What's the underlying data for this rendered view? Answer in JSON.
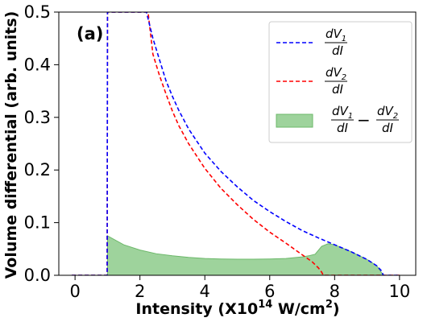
{
  "chart_data": {
    "type": "line",
    "panel_label": "(a)",
    "xlabel_main": "Intensity (X10",
    "xlabel_exp": "14",
    "xlabel_tail": " W/cm",
    "xlabel_sq": "2",
    "xlabel_end": ")",
    "ylabel": "Volume differential (arb. units)",
    "xlim": [
      -0.5,
      10.5
    ],
    "ylim": [
      0,
      0.5
    ],
    "xticks": [
      0,
      2,
      4,
      6,
      8,
      10
    ],
    "yticks": [
      0.0,
      0.1,
      0.2,
      0.3,
      0.4,
      0.5
    ],
    "xtick_labels": [
      "0",
      "2",
      "4",
      "6",
      "8",
      "10"
    ],
    "ytick_labels": [
      "0.0",
      "0.1",
      "0.2",
      "0.3",
      "0.4",
      "0.5"
    ],
    "grid": false,
    "legend_position": "upper-right",
    "colors": {
      "dv1": "#0000ff",
      "dv2": "#ff0000",
      "diff_fill": "#9ed39c",
      "diff_edge": "#6cb86a"
    },
    "series": [
      {
        "key": "dv1",
        "style": "dashed",
        "x": [
          -0.1,
          0.99,
          1.0,
          1.01,
          2.2,
          2.4,
          2.6,
          2.8,
          3.0,
          3.2,
          3.5,
          4.0,
          4.5,
          5.0,
          5.5,
          6.0,
          6.5,
          7.0,
          7.5,
          8.0,
          8.5,
          9.0,
          9.3,
          9.45,
          9.5,
          10.0
        ],
        "y": [
          0.0,
          0.0,
          0.5,
          0.5,
          0.5,
          0.45,
          0.41,
          0.37,
          0.34,
          0.313,
          0.278,
          0.232,
          0.197,
          0.168,
          0.142,
          0.121,
          0.102,
          0.085,
          0.071,
          0.058,
          0.045,
          0.03,
          0.018,
          0.008,
          0.0,
          0.0
        ]
      },
      {
        "key": "dv2",
        "style": "dashed",
        "x": [
          -0.1,
          0.99,
          1.0,
          1.01,
          2.25,
          2.4,
          2.6,
          2.8,
          3.0,
          3.2,
          3.5,
          4.0,
          4.5,
          5.0,
          5.5,
          6.0,
          6.5,
          7.0,
          7.3,
          7.5,
          7.6,
          7.65,
          10.0
        ],
        "y": [
          0.0,
          0.0,
          0.5,
          0.5,
          0.5,
          0.42,
          0.38,
          0.345,
          0.312,
          0.284,
          0.25,
          0.203,
          0.165,
          0.134,
          0.106,
          0.082,
          0.061,
          0.039,
          0.026,
          0.014,
          0.006,
          0.0,
          0.0
        ]
      },
      {
        "key": "diff",
        "style": "filled",
        "x": [
          1.0,
          1.5,
          2.0,
          2.5,
          3.0,
          3.5,
          4.0,
          4.5,
          5.0,
          5.5,
          6.0,
          6.5,
          7.0,
          7.2,
          7.4,
          7.6,
          7.8,
          8.0,
          8.5,
          9.0,
          9.3,
          9.5
        ],
        "y": [
          0.075,
          0.058,
          0.048,
          0.041,
          0.037,
          0.034,
          0.032,
          0.031,
          0.0305,
          0.0305,
          0.031,
          0.032,
          0.035,
          0.037,
          0.04,
          0.055,
          0.06,
          0.058,
          0.045,
          0.03,
          0.018,
          0.0
        ]
      }
    ],
    "legend": [
      {
        "key": "dv1",
        "num_d": "dV",
        "num_sub": "1",
        "den": "dI"
      },
      {
        "key": "dv2",
        "num_d": "dV",
        "num_sub": "2",
        "den": "dI"
      },
      {
        "key": "diff",
        "a_num": "dV",
        "a_sub": "1",
        "a_den": "dI",
        "minus": "−",
        "b_num": "dV",
        "b_sub": "2",
        "b_den": "dI"
      }
    ]
  }
}
